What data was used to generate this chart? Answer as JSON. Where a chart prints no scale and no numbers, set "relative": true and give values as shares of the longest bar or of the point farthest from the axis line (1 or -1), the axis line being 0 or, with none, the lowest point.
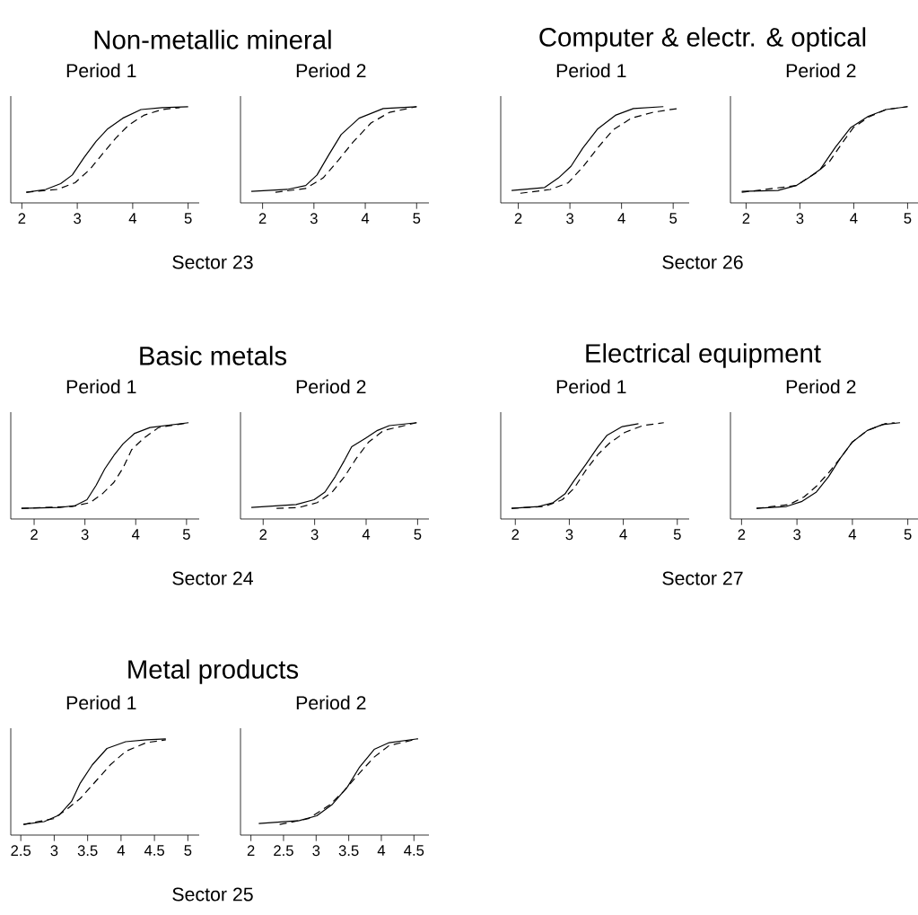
{
  "chart_data": [
    {
      "type": "line",
      "title": "Period 1",
      "annotations": [
        "Non-metallic mineral",
        "Sector 23"
      ],
      "relative": true,
      "xlim": [
        1.8,
        5.2
      ],
      "xticks": [
        2,
        3,
        4,
        5
      ],
      "series": [
        {
          "color": "#000000",
          "line_style": "solid",
          "x": [
            2.08,
            2.43,
            2.7,
            2.91,
            3.12,
            3.34,
            3.55,
            3.82,
            4.15,
            4.53,
            5.0
          ],
          "values": [
            0.11,
            0.14,
            0.2,
            0.29,
            0.47,
            0.64,
            0.77,
            0.88,
            0.97,
            0.99,
            1.0
          ]
        },
        {
          "color": "#000000",
          "line_style": "dashed",
          "x": [
            2.08,
            2.64,
            2.96,
            3.23,
            3.47,
            3.69,
            3.93,
            4.2,
            4.53,
            4.85
          ],
          "values": [
            0.11,
            0.14,
            0.21,
            0.35,
            0.52,
            0.67,
            0.81,
            0.91,
            0.97,
            0.99
          ]
        }
      ]
    },
    {
      "type": "line",
      "title": "Period 2",
      "relative": true,
      "xlim": [
        1.57,
        5.24
      ],
      "xticks": [
        2,
        3,
        4,
        5
      ],
      "series": [
        {
          "color": "#000000",
          "line_style": "solid",
          "x": [
            1.78,
            2.48,
            2.84,
            3.06,
            3.29,
            3.53,
            3.88,
            4.35,
            5.0
          ],
          "values": [
            0.12,
            0.14,
            0.18,
            0.29,
            0.5,
            0.71,
            0.88,
            0.98,
            1.0
          ]
        },
        {
          "color": "#000000",
          "line_style": "dashed",
          "x": [
            2.25,
            2.84,
            3.18,
            3.47,
            3.76,
            4.11,
            4.47,
            5.0
          ],
          "values": [
            0.11,
            0.15,
            0.26,
            0.44,
            0.63,
            0.83,
            0.94,
            1.0
          ]
        }
      ]
    },
    {
      "type": "line",
      "title": "Period 1",
      "annotations": [
        "Computer & electr. & optical",
        "Sector 26"
      ],
      "relative": true,
      "xlim": [
        1.66,
        5.31
      ],
      "xticks": [
        2,
        3,
        4,
        5
      ],
      "series": [
        {
          "color": "#000000",
          "line_style": "solid",
          "x": [
            1.87,
            2.51,
            2.78,
            3.02,
            3.25,
            3.54,
            3.88,
            4.23,
            4.81
          ],
          "values": [
            0.13,
            0.16,
            0.26,
            0.38,
            0.57,
            0.77,
            0.91,
            0.98,
            1.0
          ]
        },
        {
          "color": "#000000",
          "line_style": "dashed",
          "x": [
            2.04,
            2.62,
            2.97,
            3.26,
            3.55,
            3.84,
            4.19,
            4.6,
            4.83,
            5.08
          ],
          "values": [
            0.1,
            0.14,
            0.21,
            0.38,
            0.58,
            0.76,
            0.88,
            0.94,
            0.96,
            0.98
          ]
        }
      ]
    },
    {
      "type": "line",
      "title": "Period 2",
      "relative": true,
      "xlim": [
        1.71,
        5.21
      ],
      "xticks": [
        2,
        3,
        4,
        5
      ],
      "series": [
        {
          "color": "#000000",
          "line_style": "solid",
          "x": [
            1.92,
            2.59,
            2.93,
            3.16,
            3.38,
            3.66,
            3.94,
            4.27,
            4.6,
            5.0
          ],
          "values": [
            0.12,
            0.13,
            0.18,
            0.26,
            0.35,
            0.58,
            0.78,
            0.9,
            0.97,
            1.0
          ]
        },
        {
          "color": "#000000",
          "line_style": "dashed",
          "x": [
            1.92,
            2.93,
            3.32,
            3.55,
            3.77,
            3.99,
            4.27,
            4.6,
            5.0
          ],
          "values": [
            0.11,
            0.18,
            0.32,
            0.43,
            0.61,
            0.78,
            0.89,
            0.97,
            1.0
          ]
        }
      ]
    },
    {
      "type": "line",
      "title": "Period 1",
      "annotations": [
        "Basic metals",
        "Sector 24"
      ],
      "relative": true,
      "xlim": [
        1.54,
        5.25
      ],
      "xticks": [
        2,
        3,
        4,
        5
      ],
      "series": [
        {
          "color": "#000000",
          "line_style": "solid",
          "x": [
            1.75,
            2.51,
            2.81,
            3.04,
            3.22,
            3.39,
            3.57,
            3.75,
            3.98,
            4.28,
            5.04
          ],
          "values": [
            0.11,
            0.12,
            0.14,
            0.2,
            0.35,
            0.52,
            0.66,
            0.78,
            0.89,
            0.95,
            1.0
          ]
        },
        {
          "color": "#000000",
          "line_style": "dashed",
          "x": [
            1.75,
            2.75,
            3.1,
            3.34,
            3.57,
            3.75,
            3.92,
            4.16,
            4.45,
            5.04
          ],
          "values": [
            0.11,
            0.13,
            0.17,
            0.26,
            0.38,
            0.53,
            0.72,
            0.84,
            0.95,
            1.0
          ]
        }
      ]
    },
    {
      "type": "line",
      "title": "Period 2",
      "relative": true,
      "xlim": [
        1.56,
        5.22
      ],
      "xticks": [
        2,
        3,
        4,
        5
      ],
      "series": [
        {
          "color": "#000000",
          "line_style": "solid",
          "x": [
            1.77,
            2.64,
            2.99,
            3.2,
            3.4,
            3.58,
            3.72,
            3.99,
            4.22,
            4.45,
            4.98
          ],
          "values": [
            0.12,
            0.15,
            0.2,
            0.28,
            0.44,
            0.61,
            0.75,
            0.84,
            0.92,
            0.97,
            1.0
          ]
        },
        {
          "color": "#000000",
          "line_style": "dashed",
          "x": [
            2.26,
            2.7,
            3.05,
            3.34,
            3.58,
            3.81,
            4.05,
            4.34,
            4.98
          ],
          "values": [
            0.11,
            0.12,
            0.17,
            0.28,
            0.44,
            0.63,
            0.8,
            0.92,
            1.0
          ]
        }
      ]
    },
    {
      "type": "line",
      "title": "Period 1",
      "annotations": [
        "Electrical equipment",
        "Sector 27"
      ],
      "relative": true,
      "xlim": [
        1.73,
        5.22
      ],
      "xticks": [
        2,
        3,
        4,
        5
      ],
      "series": [
        {
          "color": "#000000",
          "line_style": "solid",
          "x": [
            1.93,
            2.43,
            2.7,
            2.92,
            3.09,
            3.31,
            3.53,
            3.7,
            3.98,
            4.28
          ],
          "values": [
            0.11,
            0.13,
            0.17,
            0.26,
            0.4,
            0.57,
            0.75,
            0.87,
            0.96,
            0.99
          ]
        },
        {
          "color": "#000000",
          "line_style": "dashed",
          "x": [
            1.93,
            2.54,
            2.87,
            3.09,
            3.31,
            3.53,
            3.75,
            4.03,
            4.36,
            4.75
          ],
          "values": [
            0.11,
            0.13,
            0.2,
            0.32,
            0.51,
            0.67,
            0.79,
            0.9,
            0.97,
            1.0
          ]
        }
      ]
    },
    {
      "type": "line",
      "title": "Period 2",
      "relative": true,
      "xlim": [
        1.8,
        5.2
      ],
      "xticks": [
        2,
        3,
        4,
        5
      ],
      "series": [
        {
          "color": "#000000",
          "line_style": "solid",
          "x": [
            2.27,
            2.81,
            3.08,
            3.35,
            3.57,
            3.78,
            4.0,
            4.27,
            4.54,
            4.86
          ],
          "values": [
            0.11,
            0.13,
            0.18,
            0.28,
            0.44,
            0.63,
            0.8,
            0.92,
            0.98,
            1.0
          ]
        },
        {
          "color": "#000000",
          "line_style": "dashed",
          "x": [
            2.27,
            2.86,
            3.13,
            3.35,
            3.57,
            3.78,
            4.0,
            4.27,
            4.59,
            4.76
          ],
          "values": [
            0.11,
            0.15,
            0.23,
            0.34,
            0.48,
            0.63,
            0.8,
            0.92,
            0.99,
            1.0
          ]
        }
      ]
    },
    {
      "type": "line",
      "title": "Period 1",
      "annotations": [
        "Metal products",
        "Sector 25"
      ],
      "relative": true,
      "xlim": [
        2.35,
        5.17
      ],
      "xticks": [
        2.5,
        3,
        3.5,
        4,
        4.5,
        5
      ],
      "series": [
        {
          "color": "#000000",
          "line_style": "solid",
          "x": [
            2.54,
            2.85,
            3.08,
            3.26,
            3.39,
            3.57,
            3.79,
            4.07,
            4.38,
            4.67
          ],
          "values": [
            0.11,
            0.14,
            0.21,
            0.35,
            0.54,
            0.73,
            0.9,
            0.97,
            0.99,
            1.0
          ]
        },
        {
          "color": "#000000",
          "line_style": "dashed",
          "x": [
            2.54,
            2.99,
            3.21,
            3.39,
            3.61,
            3.84,
            4.07,
            4.38,
            4.67
          ],
          "values": [
            0.11,
            0.17,
            0.28,
            0.38,
            0.55,
            0.73,
            0.87,
            0.96,
            0.99
          ]
        }
      ]
    },
    {
      "type": "line",
      "title": "Period 2",
      "relative": true,
      "xlim": [
        1.84,
        4.73
      ],
      "xticks": [
        2,
        2.5,
        3,
        3.5,
        4,
        4.5
      ],
      "series": [
        {
          "color": "#000000",
          "line_style": "solid",
          "x": [
            2.12,
            2.74,
            3.01,
            3.25,
            3.48,
            3.66,
            3.89,
            4.12,
            4.56
          ],
          "values": [
            0.12,
            0.15,
            0.2,
            0.32,
            0.5,
            0.7,
            0.89,
            0.96,
            1.0
          ]
        },
        {
          "color": "#000000",
          "line_style": "dashed",
          "x": [
            2.44,
            2.88,
            3.2,
            3.43,
            3.66,
            3.89,
            4.12,
            4.56
          ],
          "values": [
            0.11,
            0.17,
            0.31,
            0.46,
            0.64,
            0.81,
            0.93,
            1.0
          ]
        }
      ]
    }
  ]
}
